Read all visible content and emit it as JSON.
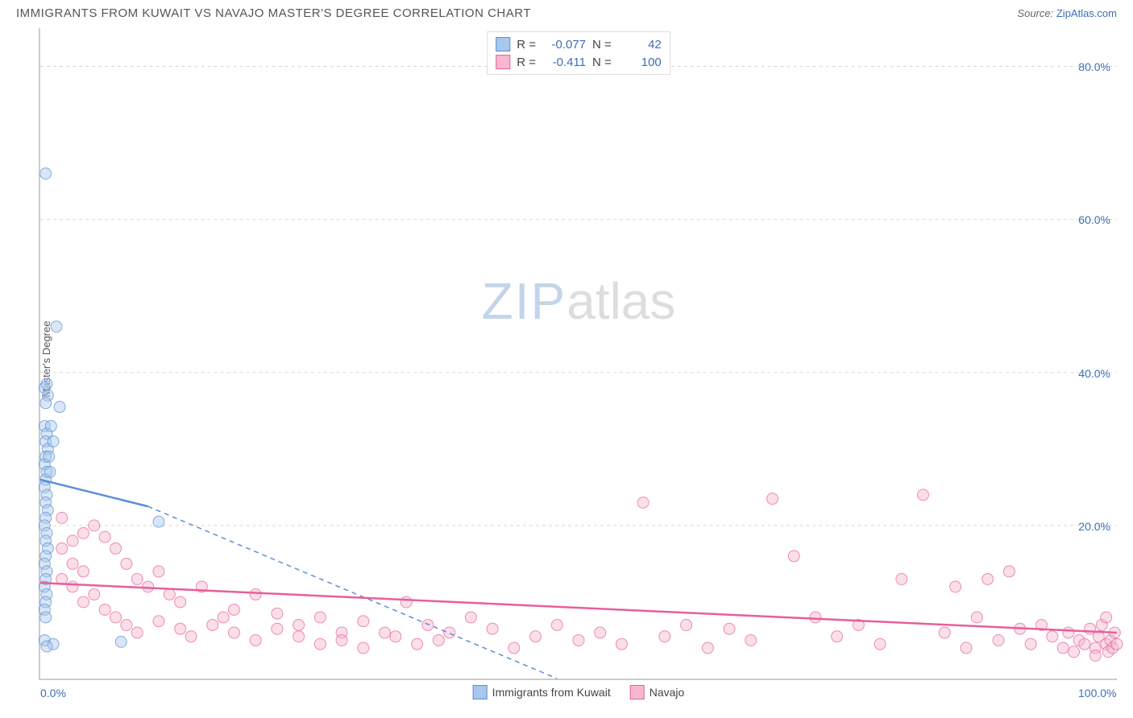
{
  "header": {
    "title": "IMMIGRANTS FROM KUWAIT VS NAVAJO MASTER'S DEGREE CORRELATION CHART",
    "source_label": "Source:",
    "source_name": "ZipAtlas.com"
  },
  "chart": {
    "type": "scatter",
    "ylabel": "Master's Degree",
    "xlim": [
      0,
      100
    ],
    "ylim": [
      0,
      85
    ],
    "xticks": [
      {
        "value": 0,
        "label": "0.0%"
      },
      {
        "value": 100,
        "label": "100.0%"
      }
    ],
    "yticks": [
      {
        "value": 20,
        "label": "20.0%"
      },
      {
        "value": 40,
        "label": "40.0%"
      },
      {
        "value": 60,
        "label": "60.0%"
      },
      {
        "value": 80,
        "label": "80.0%"
      }
    ],
    "grid_color": "#d8d8d8",
    "background_color": "#ffffff",
    "marker_radius": 7,
    "marker_opacity": 0.45,
    "watermark": {
      "part1": "ZIP",
      "part2": "atlas"
    },
    "series": [
      {
        "name": "Immigrants from Kuwait",
        "color": "#5b8fd6",
        "fill": "#a9c7ec",
        "stats": {
          "R_label": "R =",
          "R": "-0.077",
          "N_label": "N =",
          "N": "42"
        },
        "regression": {
          "x1": 0,
          "y1": 26,
          "x2": 10,
          "y2": 22.5,
          "dash_x2": 48,
          "dash_y2": 0
        },
        "points": [
          [
            0.5,
            66
          ],
          [
            1.5,
            46
          ],
          [
            0.4,
            38
          ],
          [
            0.6,
            38.5
          ],
          [
            0.7,
            37
          ],
          [
            0.5,
            36
          ],
          [
            1.8,
            35.5
          ],
          [
            0.4,
            33
          ],
          [
            0.6,
            32
          ],
          [
            0.5,
            31
          ],
          [
            0.7,
            30
          ],
          [
            0.5,
            29
          ],
          [
            0.4,
            28
          ],
          [
            0.6,
            27
          ],
          [
            0.5,
            26
          ],
          [
            0.4,
            25
          ],
          [
            0.6,
            24
          ],
          [
            0.5,
            23
          ],
          [
            0.7,
            22
          ],
          [
            0.5,
            21
          ],
          [
            0.4,
            20
          ],
          [
            0.6,
            19
          ],
          [
            0.5,
            18
          ],
          [
            0.7,
            17
          ],
          [
            0.5,
            16
          ],
          [
            0.4,
            15
          ],
          [
            0.6,
            14
          ],
          [
            0.5,
            13
          ],
          [
            0.4,
            12
          ],
          [
            0.6,
            11
          ],
          [
            0.5,
            10
          ],
          [
            0.4,
            9
          ],
          [
            0.5,
            8
          ],
          [
            0.4,
            5
          ],
          [
            1.2,
            4.5
          ],
          [
            7.5,
            4.8
          ],
          [
            0.6,
            4.2
          ],
          [
            11,
            20.5
          ],
          [
            1.0,
            33
          ],
          [
            1.2,
            31
          ],
          [
            0.8,
            29
          ],
          [
            0.9,
            27
          ]
        ]
      },
      {
        "name": "Navajo",
        "color": "#e85f9a",
        "fill": "#f5b8cf",
        "stats": {
          "R_label": "R =",
          "R": "-0.411",
          "N_label": "N =",
          "N": "100"
        },
        "regression": {
          "x1": 0,
          "y1": 12.5,
          "x2": 100,
          "y2": 6
        },
        "points": [
          [
            2,
            21
          ],
          [
            3,
            18
          ],
          [
            4,
            19
          ],
          [
            2,
            17
          ],
          [
            5,
            20
          ],
          [
            3,
            15
          ],
          [
            6,
            18.5
          ],
          [
            4,
            14
          ],
          [
            2,
            13
          ],
          [
            7,
            17
          ],
          [
            3,
            12
          ],
          [
            8,
            15
          ],
          [
            5,
            11
          ],
          [
            9,
            13
          ],
          [
            4,
            10
          ],
          [
            10,
            12
          ],
          [
            6,
            9
          ],
          [
            11,
            14
          ],
          [
            7,
            8
          ],
          [
            12,
            11
          ],
          [
            8,
            7
          ],
          [
            13,
            10
          ],
          [
            9,
            6
          ],
          [
            15,
            12
          ],
          [
            11,
            7.5
          ],
          [
            17,
            8
          ],
          [
            13,
            6.5
          ],
          [
            18,
            9
          ],
          [
            14,
            5.5
          ],
          [
            20,
            11
          ],
          [
            16,
            7
          ],
          [
            22,
            8.5
          ],
          [
            18,
            6
          ],
          [
            24,
            7
          ],
          [
            20,
            5
          ],
          [
            26,
            8
          ],
          [
            22,
            6.5
          ],
          [
            28,
            6
          ],
          [
            24,
            5.5
          ],
          [
            30,
            7.5
          ],
          [
            26,
            4.5
          ],
          [
            32,
            6
          ],
          [
            28,
            5
          ],
          [
            34,
            10
          ],
          [
            30,
            4
          ],
          [
            36,
            7
          ],
          [
            33,
            5.5
          ],
          [
            38,
            6
          ],
          [
            35,
            4.5
          ],
          [
            40,
            8
          ],
          [
            37,
            5
          ],
          [
            42,
            6.5
          ],
          [
            44,
            4
          ],
          [
            46,
            5.5
          ],
          [
            48,
            7
          ],
          [
            50,
            5
          ],
          [
            52,
            6
          ],
          [
            54,
            4.5
          ],
          [
            56,
            23
          ],
          [
            58,
            5.5
          ],
          [
            60,
            7
          ],
          [
            62,
            4
          ],
          [
            64,
            6.5
          ],
          [
            66,
            5
          ],
          [
            68,
            23.5
          ],
          [
            70,
            16
          ],
          [
            72,
            8
          ],
          [
            74,
            5.5
          ],
          [
            76,
            7
          ],
          [
            78,
            4.5
          ],
          [
            80,
            13
          ],
          [
            82,
            24
          ],
          [
            84,
            6
          ],
          [
            85,
            12
          ],
          [
            86,
            4
          ],
          [
            87,
            8
          ],
          [
            88,
            13
          ],
          [
            89,
            5
          ],
          [
            90,
            14
          ],
          [
            91,
            6.5
          ],
          [
            92,
            4.5
          ],
          [
            93,
            7
          ],
          [
            94,
            5.5
          ],
          [
            95,
            4
          ],
          [
            95.5,
            6
          ],
          [
            96,
            3.5
          ],
          [
            96.5,
            5
          ],
          [
            97,
            4.5
          ],
          [
            97.5,
            6.5
          ],
          [
            98,
            4
          ],
          [
            98.3,
            5.5
          ],
          [
            98.6,
            7
          ],
          [
            99,
            4.5
          ],
          [
            99.2,
            3.5
          ],
          [
            99.4,
            5
          ],
          [
            99.6,
            4
          ],
          [
            99.8,
            6
          ],
          [
            100,
            4.5
          ],
          [
            99,
            8
          ],
          [
            98,
            3
          ]
        ]
      }
    ]
  },
  "legend_bottom": [
    {
      "color_fill": "#a9c7ec",
      "color_stroke": "#5b8fd6",
      "label": "Immigrants from Kuwait"
    },
    {
      "color_fill": "#f5b8cf",
      "color_stroke": "#e85f9a",
      "label": "Navajo"
    }
  ]
}
